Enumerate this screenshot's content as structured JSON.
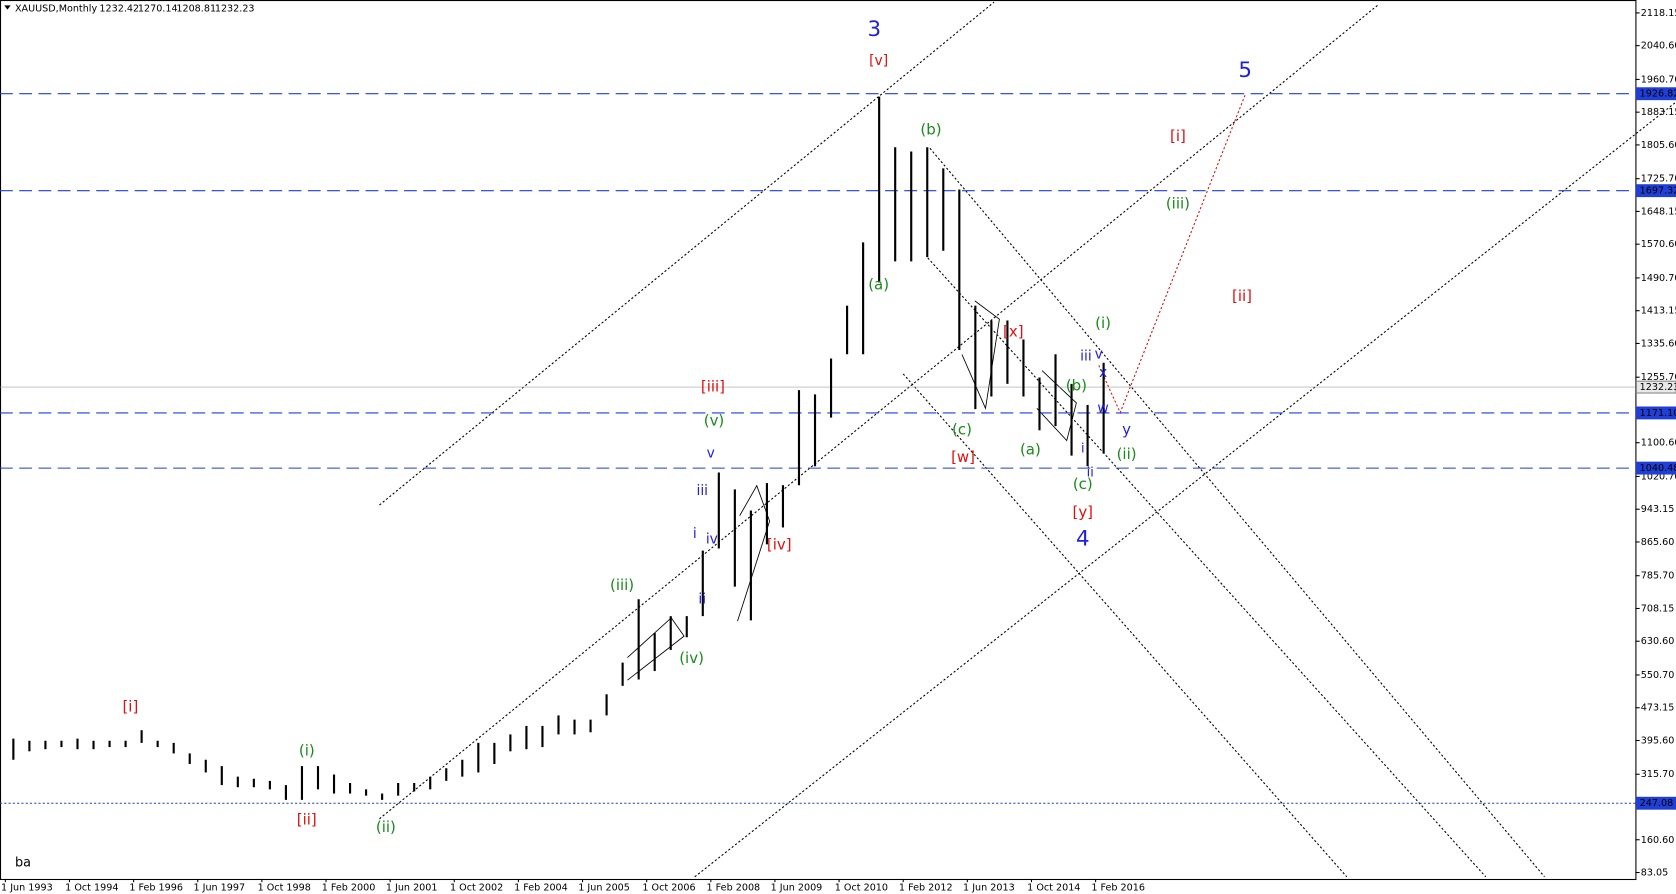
{
  "chart_data": {
    "type": "ohlc",
    "title": "XAUUSD,Monthly",
    "last_ohlc": [
      1232.42,
      1270.14,
      1208.81,
      1232.23
    ],
    "footer": "ba",
    "color": "#000000",
    "categories": [
      "1 Jun 1993",
      null,
      null,
      null,
      "1 Oct 1994",
      null,
      null,
      null,
      "1 Feb 1996",
      null,
      null,
      null,
      "1 Jun 1997",
      null,
      null,
      null,
      "1 Oct 1998",
      null,
      null,
      null,
      "1 Feb 2000",
      null,
      null,
      null,
      "1 Jun 2001",
      null,
      null,
      null,
      "1 Oct 2002",
      null,
      null,
      null,
      "1 Feb 2004",
      null,
      null,
      null,
      "1 Jun 2005",
      null,
      null,
      null,
      "1 Oct 2006",
      null,
      null,
      null,
      "1 Feb 2008",
      null,
      null,
      null,
      "1 Jun 2009",
      null,
      null,
      null,
      "1 Oct 2010",
      null,
      null,
      null,
      "1 Feb 2012",
      null,
      null,
      null,
      "1 Jun 2013",
      null,
      null,
      null,
      "1 Oct 2014",
      null,
      null,
      null,
      "1 Feb 2016"
    ],
    "high": [
      400,
      395,
      395,
      395,
      400,
      395,
      395,
      395,
      420,
      395,
      390,
      365,
      350,
      335,
      310,
      305,
      300,
      290,
      335,
      335,
      315,
      295,
      280,
      270,
      295,
      295,
      310,
      330,
      350,
      390,
      390,
      410,
      430,
      430,
      455,
      445,
      445,
      505,
      580,
      730,
      650,
      690,
      690,
      845,
      1030,
      990,
      940,
      1005,
      1000,
      1225,
      1215,
      1300,
      1425,
      1575,
      1920,
      1800,
      1790,
      1800,
      1750,
      1700,
      1425,
      1390,
      1390,
      1345,
      1255,
      1310,
      1240,
      1190,
      1290
    ],
    "low": [
      350,
      370,
      375,
      380,
      375,
      375,
      380,
      380,
      390,
      380,
      365,
      340,
      320,
      290,
      285,
      285,
      280,
      255,
      255,
      280,
      270,
      270,
      265,
      255,
      265,
      275,
      280,
      300,
      310,
      320,
      340,
      370,
      375,
      380,
      410,
      410,
      415,
      455,
      525,
      540,
      560,
      610,
      640,
      690,
      850,
      760,
      680,
      860,
      900,
      1000,
      1045,
      1160,
      1310,
      1310,
      1480,
      1530,
      1530,
      1540,
      1555,
      1320,
      1180,
      1210,
      1240,
      1210,
      1130,
      1140,
      1070,
      1045,
      1075
    ],
    "ylim": [
      67.8,
      2148.7
    ],
    "yticks": [
      2118.15,
      {
        "value": 2040.6,
        "label": "2040.60"
      },
      {
        "value": 1960.7,
        "label": "1960.70"
      },
      1883.15,
      {
        "value": 1805.6,
        "label": "1805.60"
      },
      {
        "value": 1725.7,
        "label": "1725.70"
      },
      1648.15,
      {
        "value": 1570.6,
        "label": "1570.60"
      },
      {
        "value": 1490.7,
        "label": "1490.70"
      },
      1413.15,
      {
        "value": 1335.6,
        "label": "1335.60"
      },
      {
        "value": 1255.7,
        "label": "1255.70"
      },
      {
        "value": 1100.6,
        "label": "1100.60"
      },
      {
        "value": 1020.7,
        "label": "1020.70"
      },
      943.15,
      {
        "value": 865.6,
        "label": "865.60"
      },
      {
        "value": 785.7,
        "label": "785.70"
      },
      708.15,
      {
        "value": 630.6,
        "label": "630.60"
      },
      {
        "value": 550.7,
        "label": "550.70"
      },
      473.15,
      {
        "value": 395.6,
        "label": "395.60"
      },
      {
        "value": 315.7,
        "label": "315.70"
      },
      {
        "value": 160.6,
        "label": "160.60"
      },
      83.05
    ],
    "levels": [
      {
        "value": 1926.82,
        "color": "#1f3fd6",
        "style": "dashed"
      },
      {
        "value": 1697.32,
        "color": "#1f3fd6",
        "style": "dashed"
      },
      {
        "value": 1232.23,
        "color": "#a0a0a0",
        "style": "solid"
      },
      {
        "value": 1171.1,
        "label": "1171.10",
        "color": "#1f3fd6",
        "style": "dashed"
      },
      {
        "value": 1040.48,
        "color": "#1f3fd6",
        "style": "dashed"
      },
      {
        "value": 247.08,
        "color": "#1f3fd6",
        "style": "dotted"
      }
    ],
    "annotations": [
      {
        "text": "3",
        "color": "#1f1fe0"
      },
      {
        "text": "[v]",
        "color": "#e01010"
      },
      {
        "text": "5",
        "color": "#1f1fe0"
      },
      {
        "text": "(b)",
        "color": "#1a8a1a"
      },
      {
        "text": "[i]",
        "color": "#e01010"
      },
      {
        "text": "(iii)",
        "color": "#1a8a1a"
      },
      {
        "text": "(a)",
        "color": "#1a8a1a"
      },
      {
        "text": "[ii]",
        "color": "#e01010"
      },
      {
        "text": "(i)",
        "color": "#1a8a1a"
      },
      {
        "text": "[x]",
        "color": "#e01010"
      },
      {
        "text": "iii",
        "color": "#1f1fe0"
      },
      {
        "text": "v",
        "color": "#1f1fe0"
      },
      {
        "text": "x",
        "color": "#1f1fe0"
      },
      {
        "text": "(b)",
        "color": "#1a8a1a"
      },
      {
        "text": "[iii]",
        "color": "#e01010"
      },
      {
        "text": "w",
        "color": "#1f1fe0"
      },
      {
        "text": "(v)",
        "color": "#1a8a1a"
      },
      {
        "text": "(c)",
        "color": "#1a8a1a"
      },
      {
        "text": "y",
        "color": "#1f1fe0"
      },
      {
        "text": "(a)",
        "color": "#1a8a1a"
      },
      {
        "text": "v",
        "color": "#1f1fe0"
      },
      {
        "text": "(ii)",
        "color": "#1a8a1a"
      },
      {
        "text": "[w]",
        "color": "#e01010"
      },
      {
        "text": "i",
        "color": "#1f1fe0"
      },
      {
        "text": "ii",
        "color": "#1f1fe0"
      },
      {
        "text": "(c)",
        "color": "#1a8a1a"
      },
      {
        "text": "iii",
        "color": "#1f1fe0"
      },
      {
        "text": "[y]",
        "color": "#e01010"
      },
      {
        "text": "i",
        "color": "#1f1fe0"
      },
      {
        "text": "iv",
        "color": "#1f1fe0"
      },
      {
        "text": "4",
        "color": "#1f1fe0"
      },
      {
        "text": "[iv]",
        "color": "#e01010"
      },
      {
        "text": "(iii)",
        "color": "#1a8a1a"
      },
      {
        "text": "ii",
        "color": "#1f1fe0"
      },
      {
        "text": "(iv)",
        "color": "#1a8a1a"
      },
      {
        "text": "[i]",
        "color": "#e01010"
      },
      {
        "text": "(i)",
        "color": "#1a8a1a"
      },
      {
        "text": "[ii]",
        "color": "#e01010"
      },
      {
        "text": "(ii)",
        "color": "#1a8a1a"
      }
    ]
  }
}
